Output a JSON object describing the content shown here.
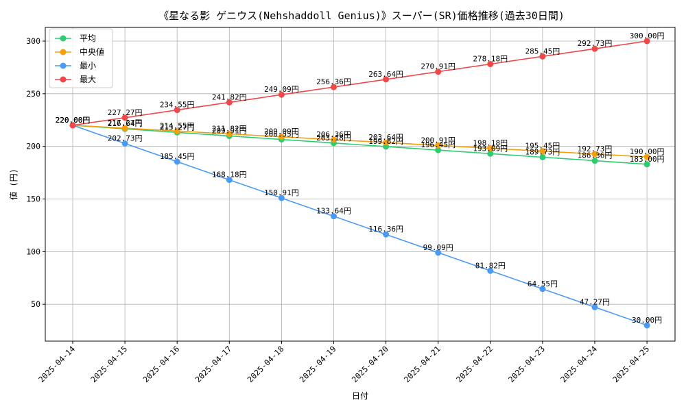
{
  "chart_data": {
    "type": "line",
    "title": "《星なる影 ゲニウス(Nehshaddoll Genius)》スーパー(SR)価格推移(過去30日間)",
    "xlabel": "日付",
    "ylabel": "値 (円)",
    "ylim": [
      15,
      313
    ],
    "yticks": [
      50,
      100,
      150,
      200,
      250,
      300
    ],
    "grid": true,
    "legend_position": "top-left",
    "value_suffix": "円",
    "categories": [
      "2025-04-14",
      "2025-04-15",
      "2025-04-16",
      "2025-04-17",
      "2025-04-18",
      "2025-04-19",
      "2025-04-20",
      "2025-04-21",
      "2025-04-22",
      "2025-04-23",
      "2025-04-24",
      "2025-04-25"
    ],
    "series": [
      {
        "name": "平均",
        "color": "#2ecc71",
        "values": [
          220.0,
          216.64,
          213.27,
          209.91,
          206.55,
          203.18,
          199.82,
          196.45,
          193.09,
          189.73,
          186.36,
          183.0
        ]
      },
      {
        "name": "中央値",
        "color": "#f5a00b",
        "values": [
          220.0,
          217.27,
          214.55,
          211.82,
          209.09,
          206.36,
          203.64,
          200.91,
          198.18,
          195.45,
          192.73,
          190.0
        ]
      },
      {
        "name": "最小",
        "color": "#4a9af5",
        "values": [
          220.0,
          202.73,
          185.45,
          168.18,
          150.91,
          133.64,
          116.36,
          99.09,
          81.82,
          64.55,
          47.27,
          30.0
        ]
      },
      {
        "name": "最大",
        "color": "#f04747",
        "values": [
          220.0,
          227.27,
          234.55,
          241.82,
          249.09,
          256.36,
          263.64,
          270.91,
          278.18,
          285.45,
          292.73,
          300.0
        ]
      }
    ]
  }
}
